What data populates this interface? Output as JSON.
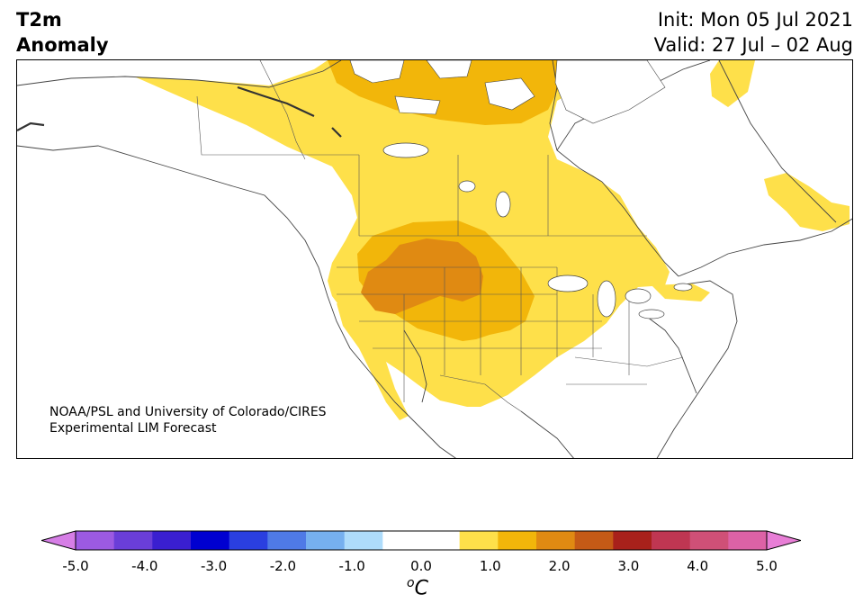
{
  "title": {
    "left_line1": "T2m",
    "left_line2": "Anomaly",
    "right_line1": "Init: Mon 05 Jul 2021",
    "right_line2": "Valid: 27 Jul – 02 Aug"
  },
  "credit": {
    "line1": "NOAA/PSL and University of Colorado/CIRES",
    "line2": "Experimental LIM Forecast"
  },
  "colorbar": {
    "colors": [
      "#d67ee6",
      "#9c5ae2",
      "#6a3ed8",
      "#3a1fd0",
      "#0000d0",
      "#2a3fe0",
      "#4f7ae6",
      "#76b0ef",
      "#aedcfb",
      "#ffffff",
      "#ffffff",
      "#fee04a",
      "#f2b60a",
      "#e08a12",
      "#c55a16",
      "#a8211b",
      "#bf3652",
      "#cf5077",
      "#dc62a6",
      "#e87ed6"
    ],
    "tick_labels": [
      "-5.0",
      "-4.0",
      "-3.0",
      "-2.0",
      "-1.0",
      "0.0",
      "1.0",
      "2.0",
      "3.0",
      "4.0",
      "5.0"
    ],
    "min": -5.0,
    "max": 5.0,
    "step": 0.5,
    "unit_base": "C",
    "unit_sup": "o"
  },
  "anomaly_levels": {
    "light_yellow_range": "0.5 to 1.0",
    "gold_range": "1.0 to 1.5",
    "orange_range": "1.5 to 2.0"
  }
}
